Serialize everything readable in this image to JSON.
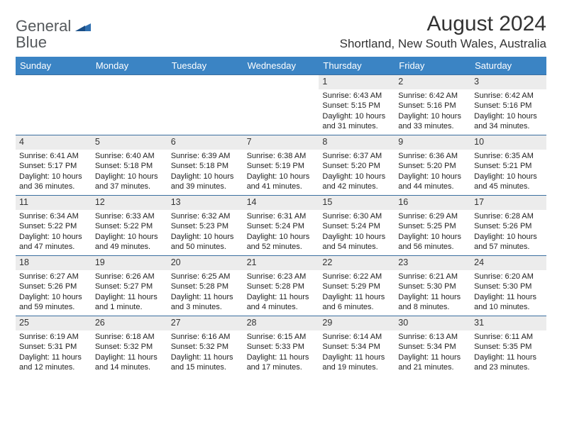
{
  "logo": {
    "word1": "General",
    "word2": "Blue"
  },
  "title": "August 2024",
  "subtitle": "Shortland, New South Wales, Australia",
  "header_bg": "#3b84c4",
  "header_text_color": "#ffffff",
  "daynum_bg": "#ececec",
  "cell_border_color": "#3b6fa0",
  "body_font_size": 11,
  "weekdays": [
    "Sunday",
    "Monday",
    "Tuesday",
    "Wednesday",
    "Thursday",
    "Friday",
    "Saturday"
  ],
  "lead_blanks": 4,
  "days": [
    {
      "n": "1",
      "sunrise": "Sunrise: 6:43 AM",
      "sunset": "Sunset: 5:15 PM",
      "day1": "Daylight: 10 hours",
      "day2": "and 31 minutes."
    },
    {
      "n": "2",
      "sunrise": "Sunrise: 6:42 AM",
      "sunset": "Sunset: 5:16 PM",
      "day1": "Daylight: 10 hours",
      "day2": "and 33 minutes."
    },
    {
      "n": "3",
      "sunrise": "Sunrise: 6:42 AM",
      "sunset": "Sunset: 5:16 PM",
      "day1": "Daylight: 10 hours",
      "day2": "and 34 minutes."
    },
    {
      "n": "4",
      "sunrise": "Sunrise: 6:41 AM",
      "sunset": "Sunset: 5:17 PM",
      "day1": "Daylight: 10 hours",
      "day2": "and 36 minutes."
    },
    {
      "n": "5",
      "sunrise": "Sunrise: 6:40 AM",
      "sunset": "Sunset: 5:18 PM",
      "day1": "Daylight: 10 hours",
      "day2": "and 37 minutes."
    },
    {
      "n": "6",
      "sunrise": "Sunrise: 6:39 AM",
      "sunset": "Sunset: 5:18 PM",
      "day1": "Daylight: 10 hours",
      "day2": "and 39 minutes."
    },
    {
      "n": "7",
      "sunrise": "Sunrise: 6:38 AM",
      "sunset": "Sunset: 5:19 PM",
      "day1": "Daylight: 10 hours",
      "day2": "and 41 minutes."
    },
    {
      "n": "8",
      "sunrise": "Sunrise: 6:37 AM",
      "sunset": "Sunset: 5:20 PM",
      "day1": "Daylight: 10 hours",
      "day2": "and 42 minutes."
    },
    {
      "n": "9",
      "sunrise": "Sunrise: 6:36 AM",
      "sunset": "Sunset: 5:20 PM",
      "day1": "Daylight: 10 hours",
      "day2": "and 44 minutes."
    },
    {
      "n": "10",
      "sunrise": "Sunrise: 6:35 AM",
      "sunset": "Sunset: 5:21 PM",
      "day1": "Daylight: 10 hours",
      "day2": "and 45 minutes."
    },
    {
      "n": "11",
      "sunrise": "Sunrise: 6:34 AM",
      "sunset": "Sunset: 5:22 PM",
      "day1": "Daylight: 10 hours",
      "day2": "and 47 minutes."
    },
    {
      "n": "12",
      "sunrise": "Sunrise: 6:33 AM",
      "sunset": "Sunset: 5:22 PM",
      "day1": "Daylight: 10 hours",
      "day2": "and 49 minutes."
    },
    {
      "n": "13",
      "sunrise": "Sunrise: 6:32 AM",
      "sunset": "Sunset: 5:23 PM",
      "day1": "Daylight: 10 hours",
      "day2": "and 50 minutes."
    },
    {
      "n": "14",
      "sunrise": "Sunrise: 6:31 AM",
      "sunset": "Sunset: 5:24 PM",
      "day1": "Daylight: 10 hours",
      "day2": "and 52 minutes."
    },
    {
      "n": "15",
      "sunrise": "Sunrise: 6:30 AM",
      "sunset": "Sunset: 5:24 PM",
      "day1": "Daylight: 10 hours",
      "day2": "and 54 minutes."
    },
    {
      "n": "16",
      "sunrise": "Sunrise: 6:29 AM",
      "sunset": "Sunset: 5:25 PM",
      "day1": "Daylight: 10 hours",
      "day2": "and 56 minutes."
    },
    {
      "n": "17",
      "sunrise": "Sunrise: 6:28 AM",
      "sunset": "Sunset: 5:26 PM",
      "day1": "Daylight: 10 hours",
      "day2": "and 57 minutes."
    },
    {
      "n": "18",
      "sunrise": "Sunrise: 6:27 AM",
      "sunset": "Sunset: 5:26 PM",
      "day1": "Daylight: 10 hours",
      "day2": "and 59 minutes."
    },
    {
      "n": "19",
      "sunrise": "Sunrise: 6:26 AM",
      "sunset": "Sunset: 5:27 PM",
      "day1": "Daylight: 11 hours",
      "day2": "and 1 minute."
    },
    {
      "n": "20",
      "sunrise": "Sunrise: 6:25 AM",
      "sunset": "Sunset: 5:28 PM",
      "day1": "Daylight: 11 hours",
      "day2": "and 3 minutes."
    },
    {
      "n": "21",
      "sunrise": "Sunrise: 6:23 AM",
      "sunset": "Sunset: 5:28 PM",
      "day1": "Daylight: 11 hours",
      "day2": "and 4 minutes."
    },
    {
      "n": "22",
      "sunrise": "Sunrise: 6:22 AM",
      "sunset": "Sunset: 5:29 PM",
      "day1": "Daylight: 11 hours",
      "day2": "and 6 minutes."
    },
    {
      "n": "23",
      "sunrise": "Sunrise: 6:21 AM",
      "sunset": "Sunset: 5:30 PM",
      "day1": "Daylight: 11 hours",
      "day2": "and 8 minutes."
    },
    {
      "n": "24",
      "sunrise": "Sunrise: 6:20 AM",
      "sunset": "Sunset: 5:30 PM",
      "day1": "Daylight: 11 hours",
      "day2": "and 10 minutes."
    },
    {
      "n": "25",
      "sunrise": "Sunrise: 6:19 AM",
      "sunset": "Sunset: 5:31 PM",
      "day1": "Daylight: 11 hours",
      "day2": "and 12 minutes."
    },
    {
      "n": "26",
      "sunrise": "Sunrise: 6:18 AM",
      "sunset": "Sunset: 5:32 PM",
      "day1": "Daylight: 11 hours",
      "day2": "and 14 minutes."
    },
    {
      "n": "27",
      "sunrise": "Sunrise: 6:16 AM",
      "sunset": "Sunset: 5:32 PM",
      "day1": "Daylight: 11 hours",
      "day2": "and 15 minutes."
    },
    {
      "n": "28",
      "sunrise": "Sunrise: 6:15 AM",
      "sunset": "Sunset: 5:33 PM",
      "day1": "Daylight: 11 hours",
      "day2": "and 17 minutes."
    },
    {
      "n": "29",
      "sunrise": "Sunrise: 6:14 AM",
      "sunset": "Sunset: 5:34 PM",
      "day1": "Daylight: 11 hours",
      "day2": "and 19 minutes."
    },
    {
      "n": "30",
      "sunrise": "Sunrise: 6:13 AM",
      "sunset": "Sunset: 5:34 PM",
      "day1": "Daylight: 11 hours",
      "day2": "and 21 minutes."
    },
    {
      "n": "31",
      "sunrise": "Sunrise: 6:11 AM",
      "sunset": "Sunset: 5:35 PM",
      "day1": "Daylight: 11 hours",
      "day2": "and 23 minutes."
    }
  ]
}
